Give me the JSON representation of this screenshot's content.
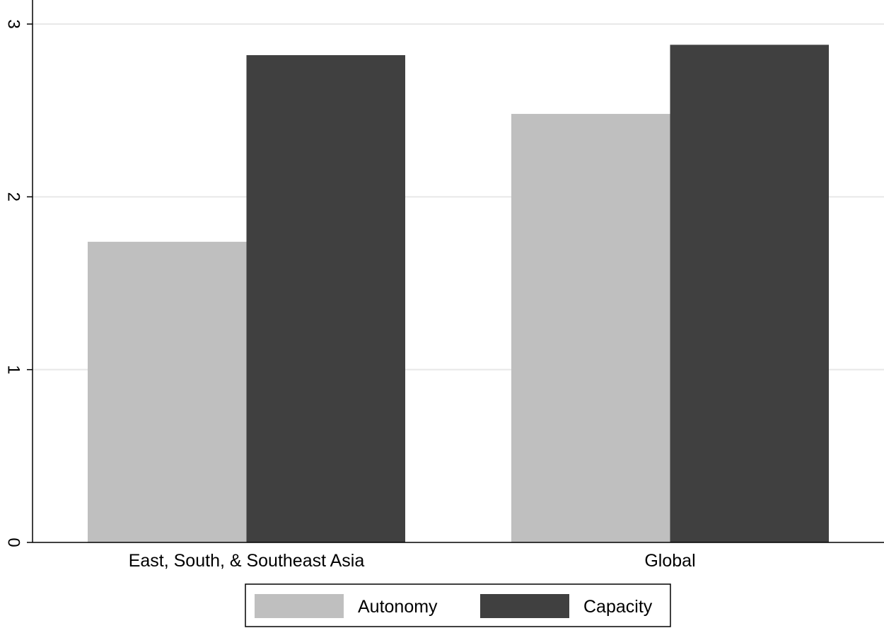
{
  "chart_data": {
    "type": "bar",
    "categories": [
      "East, South, & Southeast Asia",
      "Global"
    ],
    "series": [
      {
        "name": "Autonomy",
        "values": [
          1.74,
          2.48
        ],
        "color": "#bfbfbf"
      },
      {
        "name": "Capacity",
        "values": [
          2.82,
          2.88
        ],
        "color": "#404040"
      }
    ],
    "ylim": [
      0,
      3
    ],
    "yticks": [
      0,
      1,
      2,
      3
    ],
    "ytick_labels": [
      "0",
      "1",
      "2",
      "3"
    ],
    "grid": true,
    "grid_color": "#e8e8e8",
    "legend_position": "bottom-center",
    "title": "",
    "xlabel": "",
    "ylabel": ""
  }
}
